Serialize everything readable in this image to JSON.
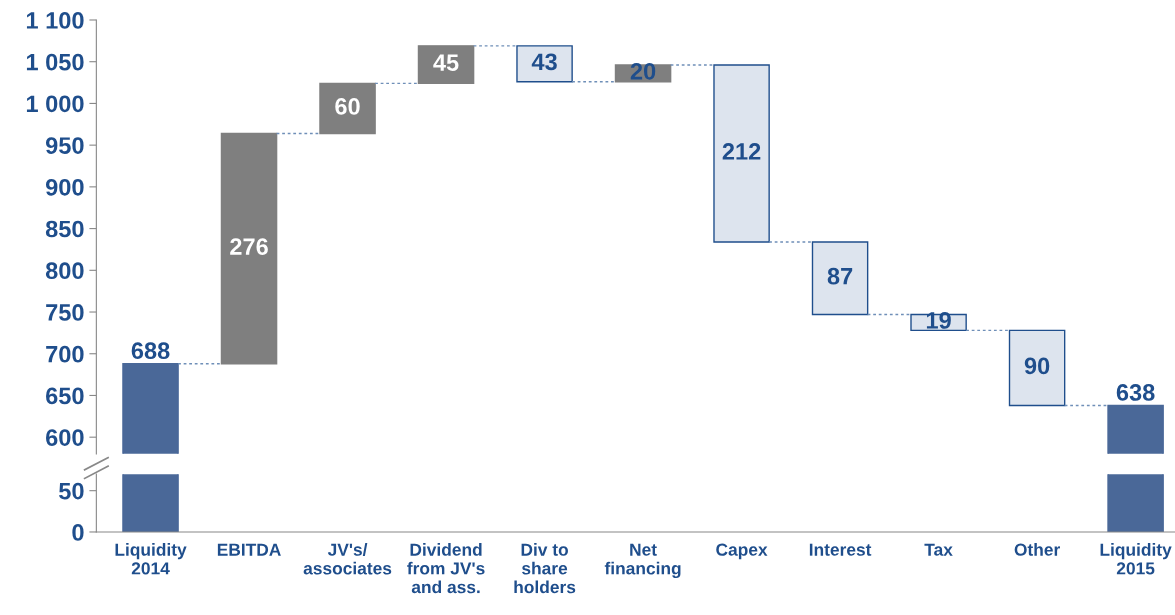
{
  "chart_data": [
    {
      "type": "bar",
      "categories": [
        null,
        null,
        null,
        null,
        null,
        null,
        null,
        null,
        null,
        null,
        null
      ],
      "values": [
        688,
        276,
        60,
        45,
        43,
        20,
        212,
        87,
        19,
        90,
        638
      ],
      "base": [
        0,
        688,
        964,
        1024,
        1026,
        1026,
        834,
        747,
        728,
        638,
        0
      ],
      "colors": [
        "#4a6898",
        "#7f7f7f",
        "#7f7f7f",
        "#7f7f7f",
        "#dde4ee",
        "#7f7f7f",
        "#dde4ee",
        "#dde4ee",
        "#dde4ee",
        "#dde4ee",
        "#4a6898"
      ],
      "ylim": [
        580,
        1100
      ],
      "yticks": [
        600,
        650,
        700,
        750,
        800,
        850,
        900,
        950,
        {
          "value": 1000,
          "label": "1 000"
        },
        {
          "value": 1050,
          "label": "1 050"
        },
        {
          "value": 1100,
          "label": "1 100"
        }
      ],
      "data_labels": true,
      "grid": false
    },
    {
      "type": "bar",
      "categories": [
        "Liquidity\n2014",
        "EBITDA",
        "JV's/\nassociates",
        "Dividend\nfrom JV's\nand ass.",
        "Div to\nshare\nholders",
        "Net\nfinancing",
        "Capex",
        "Interest",
        "Tax",
        "Other",
        "Liquidity\n2015"
      ],
      "values": [
        688,
        null,
        null,
        null,
        null,
        null,
        null,
        null,
        null,
        null,
        638
      ],
      "base": [
        0,
        null,
        null,
        null,
        null,
        null,
        null,
        null,
        null,
        null,
        0
      ],
      "colors": [
        "#4a6898",
        "#7f7f7f",
        "#7f7f7f",
        "#7f7f7f",
        "#dde4ee",
        "#7f7f7f",
        "#dde4ee",
        "#dde4ee",
        "#dde4ee",
        "#dde4ee",
        "#4a6898"
      ],
      "ylim": [
        0,
        70
      ],
      "yticks": [
        0,
        50
      ],
      "grid": false
    }
  ]
}
